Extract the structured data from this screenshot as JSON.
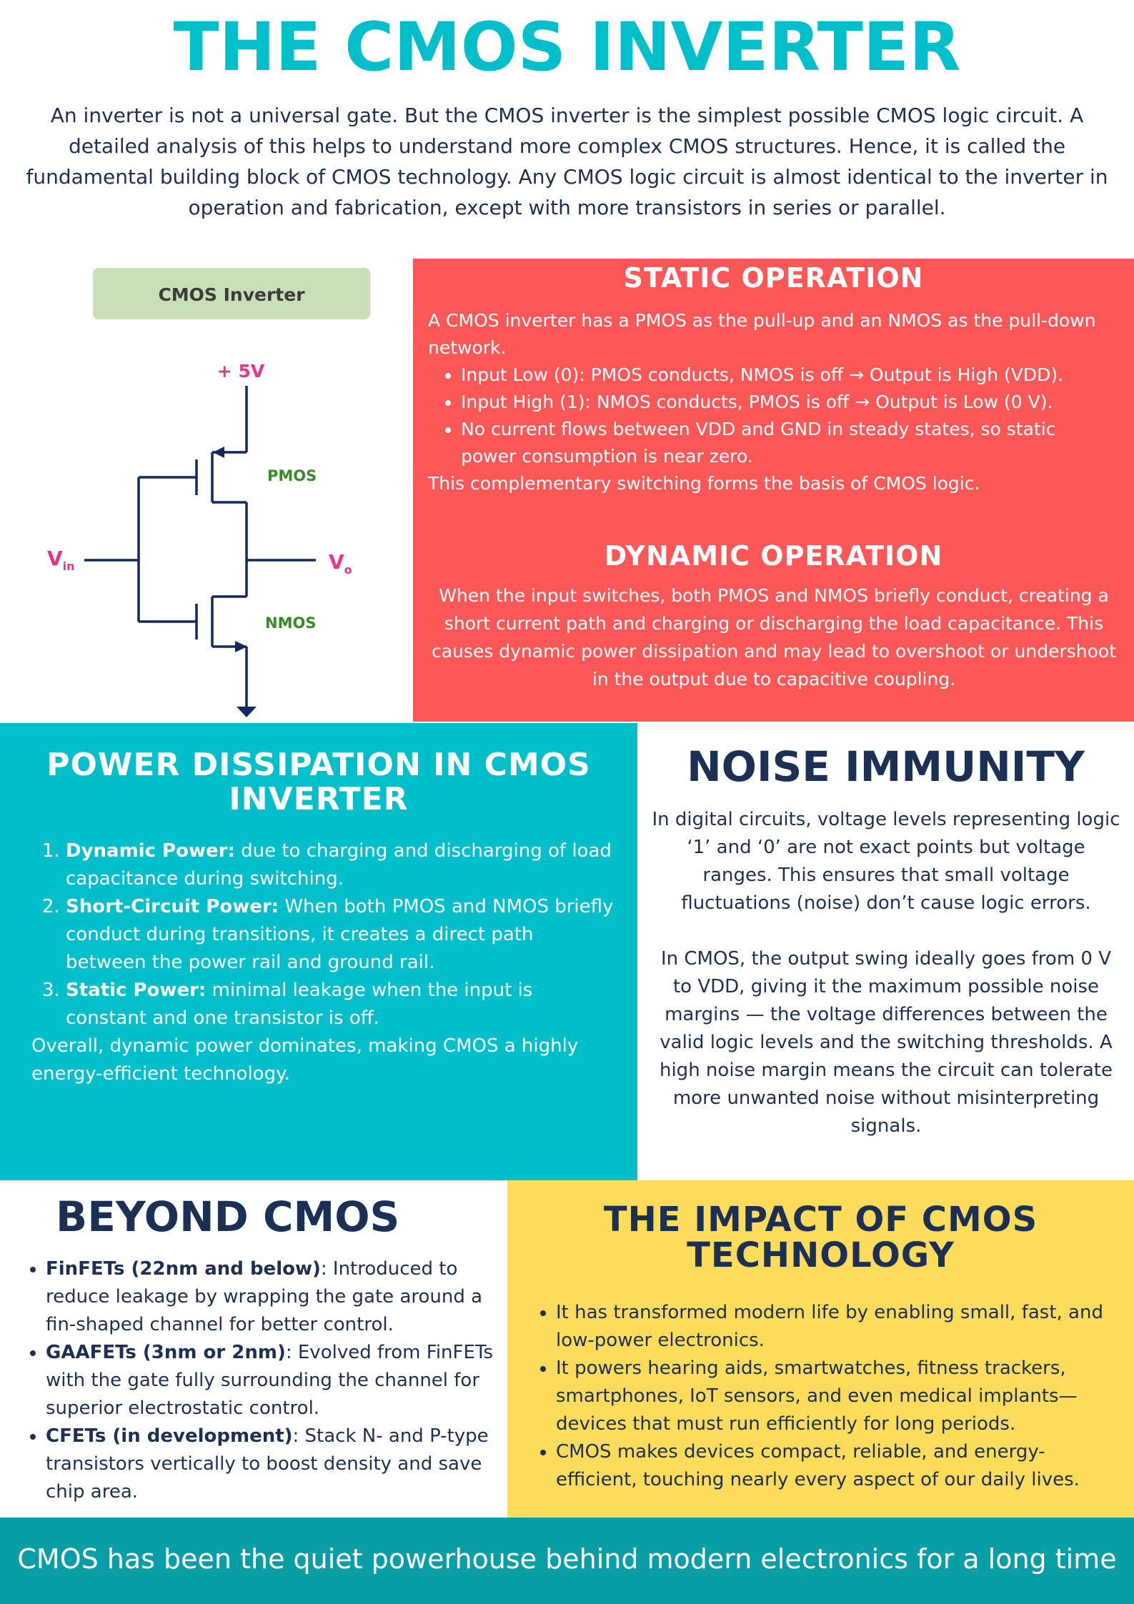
{
  "title": "THE CMOS INVERTER",
  "intro": "An inverter is not a universal gate. But the CMOS inverter is the simplest possible CMOS logic circuit. A detailed analysis of this helps to understand more complex CMOS structures. Hence, it is called the fundamental building block of CMOS technology.  Any CMOS logic circuit is almost identical to the inverter in operation and fabrication, except with more transistors in series or parallel.",
  "diagram": {
    "box_label": "CMOS Inverter",
    "vdd_label": "+ 5V",
    "pmos_label": "PMOS",
    "nmos_label": "NMOS",
    "vin_main": "V",
    "vin_sub": "in",
    "vout_main": "V",
    "vout_sub": "o",
    "colors": {
      "wire": "#13285c",
      "accent": "#e8358a",
      "device": "#3a8a2a",
      "box": "#c9dfb8"
    }
  },
  "static": {
    "heading": "STATIC OPERATION",
    "lead": "A CMOS inverter has a PMOS as the pull-up and an NMOS as the pull-down network.",
    "bullets": [
      "Input Low (0): PMOS conducts, NMOS is off → Output is High (VDD).",
      "Input High (1): NMOS conducts, PMOS is off → Output is Low (0 V).",
      "No current flows between VDD and GND in steady states, so static power consumption is near zero."
    ],
    "closing": "This complementary switching forms the basis of CMOS logic."
  },
  "dynamic": {
    "heading": "DYNAMIC OPERATION",
    "body": "When the input switches, both PMOS and NMOS briefly conduct, creating a short current path and charging or discharging the load capacitance. This causes dynamic power dissipation and may lead to overshoot or undershoot in the output due to capacitive coupling."
  },
  "power": {
    "heading": "POWER DISSIPATION IN CMOS INVERTER",
    "items": [
      {
        "term": "Dynamic Power:",
        "text": " due to charging and discharging of load capacitance during switching."
      },
      {
        "term": "Short-Circuit Power:",
        "text": " When both PMOS and NMOS briefly conduct during transitions, it creates a direct path between the power rail and ground rail."
      },
      {
        "term": "Static Power:",
        "text": " minimal leakage when the input is constant and one transistor is off."
      }
    ],
    "closing": "Overall, dynamic power dominates, making CMOS a highly energy-efficient technology."
  },
  "noise": {
    "heading": "NOISE IMMUNITY",
    "para1": "In digital circuits, voltage levels representing logic ‘1’ and ‘0’ are not exact points but voltage ranges. This ensures that small voltage fluctuations (noise) don’t cause logic errors.",
    "para2": "In CMOS, the output swing ideally goes from 0 V to VDD, giving it the maximum possible noise margins — the voltage differences between the valid logic levels and the switching thresholds. A high noise margin means the circuit can tolerate more unwanted noise without misinterpreting signals."
  },
  "beyond": {
    "heading": "BEYOND CMOS",
    "items": [
      {
        "term": "FinFETs (22nm and below)",
        "text": ": Introduced to reduce leakage by wrapping the gate around a fin-shaped channel for better control."
      },
      {
        "term": "GAAFETs (3nm or 2nm)",
        "text": ": Evolved from FinFETs with the gate fully surrounding the channel for superior electrostatic control."
      },
      {
        "term": "CFETs (in development)",
        "text": ": Stack N- and P-type transistors vertically to boost density and save chip area."
      }
    ]
  },
  "impact": {
    "heading": "THE IMPACT OF CMOS TECHNOLOGY",
    "items": [
      "It has transformed modern life by enabling small, fast, and low-power electronics.",
      "It powers hearing aids, smartwatches, fitness trackers, smartphones, IoT sensors, and even medical implants—devices that must run efficiently for long periods.",
      "CMOS makes devices compact, reliable, and energy-efficient, touching nearly every aspect of our daily lives."
    ]
  },
  "footer": "CMOS has been the quiet powerhouse behind modern electronics for a long time",
  "colors": {
    "teal": "#00bfca",
    "navy": "#1c2f55",
    "red": "#fe5757",
    "yellow": "#fddc5c",
    "footer": "#089ea6"
  }
}
